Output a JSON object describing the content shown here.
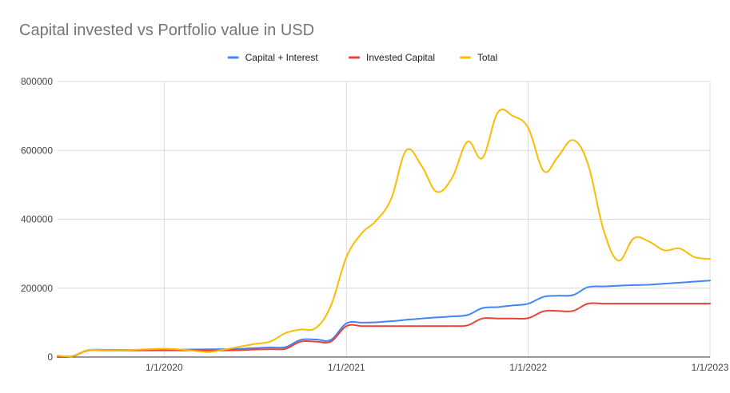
{
  "chart_data": {
    "type": "line",
    "title": "Capital invested vs Portfolio value in USD",
    "xlabel": "",
    "ylabel": "",
    "x_range": [
      "2019-06-01",
      "2023-01-01"
    ],
    "ylim": [
      0,
      800000
    ],
    "y_ticks": [
      "0",
      "200000",
      "400000",
      "600000",
      "800000"
    ],
    "x_ticks": [
      {
        "date": "2020-01-01",
        "label": "1/1/2020"
      },
      {
        "date": "2021-01-01",
        "label": "1/1/2021"
      },
      {
        "date": "2022-01-01",
        "label": "1/1/2022"
      },
      {
        "date": "2023-01-01",
        "label": "1/1/2023"
      }
    ],
    "grid": true,
    "legend_position": "top",
    "series": [
      {
        "name": "Capital + Interest",
        "color": "#4285f4",
        "points": [
          [
            "2019-06-01",
            2000
          ],
          [
            "2019-07-01",
            3000
          ],
          [
            "2019-08-01",
            20000
          ],
          [
            "2019-09-01",
            21000
          ],
          [
            "2019-10-01",
            21000
          ],
          [
            "2019-11-01",
            21000
          ],
          [
            "2019-12-01",
            21000
          ],
          [
            "2020-01-01",
            21000
          ],
          [
            "2020-02-01",
            21500
          ],
          [
            "2020-03-01",
            22000
          ],
          [
            "2020-04-01",
            22500
          ],
          [
            "2020-05-01",
            23000
          ],
          [
            "2020-06-01",
            24000
          ],
          [
            "2020-07-01",
            26000
          ],
          [
            "2020-08-01",
            28000
          ],
          [
            "2020-09-01",
            29000
          ],
          [
            "2020-10-01",
            50000
          ],
          [
            "2020-11-01",
            51000
          ],
          [
            "2020-12-01",
            50000
          ],
          [
            "2021-01-01",
            98000
          ],
          [
            "2021-02-01",
            100000
          ],
          [
            "2021-03-01",
            101000
          ],
          [
            "2021-04-01",
            104000
          ],
          [
            "2021-05-01",
            108000
          ],
          [
            "2021-06-01",
            112000
          ],
          [
            "2021-07-01",
            115000
          ],
          [
            "2021-08-01",
            118000
          ],
          [
            "2021-09-01",
            122000
          ],
          [
            "2021-10-01",
            142000
          ],
          [
            "2021-11-01",
            145000
          ],
          [
            "2021-12-01",
            150000
          ],
          [
            "2022-01-01",
            155000
          ],
          [
            "2022-02-01",
            175000
          ],
          [
            "2022-03-01",
            178000
          ],
          [
            "2022-04-01",
            180000
          ],
          [
            "2022-05-01",
            203000
          ],
          [
            "2022-06-01",
            205000
          ],
          [
            "2022-07-01",
            207000
          ],
          [
            "2022-08-01",
            209000
          ],
          [
            "2022-09-01",
            210000
          ],
          [
            "2022-10-01",
            213000
          ],
          [
            "2022-11-01",
            216000
          ],
          [
            "2022-12-01",
            219000
          ],
          [
            "2023-01-01",
            222000
          ]
        ]
      },
      {
        "name": "Invested Capital",
        "color": "#ea4335",
        "points": [
          [
            "2019-06-01",
            0
          ],
          [
            "2019-07-01",
            2000
          ],
          [
            "2019-08-01",
            19000
          ],
          [
            "2019-09-01",
            19000
          ],
          [
            "2019-10-01",
            19000
          ],
          [
            "2019-11-01",
            19000
          ],
          [
            "2019-12-01",
            19000
          ],
          [
            "2020-01-01",
            19000
          ],
          [
            "2020-02-01",
            19000
          ],
          [
            "2020-03-01",
            19000
          ],
          [
            "2020-04-01",
            19000
          ],
          [
            "2020-05-01",
            19000
          ],
          [
            "2020-06-01",
            20000
          ],
          [
            "2020-07-01",
            22000
          ],
          [
            "2020-08-01",
            23000
          ],
          [
            "2020-09-01",
            24000
          ],
          [
            "2020-10-01",
            45000
          ],
          [
            "2020-11-01",
            45000
          ],
          [
            "2020-12-01",
            45000
          ],
          [
            "2021-01-01",
            90000
          ],
          [
            "2021-02-01",
            90000
          ],
          [
            "2021-03-01",
            90000
          ],
          [
            "2021-04-01",
            90000
          ],
          [
            "2021-05-01",
            90000
          ],
          [
            "2021-06-01",
            90000
          ],
          [
            "2021-07-01",
            90000
          ],
          [
            "2021-08-01",
            90000
          ],
          [
            "2021-09-01",
            92000
          ],
          [
            "2021-10-01",
            112000
          ],
          [
            "2021-11-01",
            112000
          ],
          [
            "2021-12-01",
            112000
          ],
          [
            "2022-01-01",
            113000
          ],
          [
            "2022-02-01",
            133000
          ],
          [
            "2022-03-01",
            134000
          ],
          [
            "2022-04-01",
            134000
          ],
          [
            "2022-05-01",
            155000
          ],
          [
            "2022-06-01",
            155000
          ],
          [
            "2022-07-01",
            155000
          ],
          [
            "2022-08-01",
            155000
          ],
          [
            "2022-09-01",
            155000
          ],
          [
            "2022-10-01",
            155000
          ],
          [
            "2022-11-01",
            155000
          ],
          [
            "2022-12-01",
            155000
          ],
          [
            "2023-01-01",
            155000
          ]
        ]
      },
      {
        "name": "Total",
        "color": "#fbbc04",
        "points": [
          [
            "2019-06-01",
            4000
          ],
          [
            "2019-07-01",
            3000
          ],
          [
            "2019-08-01",
            20000
          ],
          [
            "2019-09-01",
            20000
          ],
          [
            "2019-10-01",
            20000
          ],
          [
            "2019-11-01",
            21000
          ],
          [
            "2019-12-01",
            23000
          ],
          [
            "2020-01-01",
            24000
          ],
          [
            "2020-02-01",
            22000
          ],
          [
            "2020-03-01",
            18000
          ],
          [
            "2020-04-01",
            15000
          ],
          [
            "2020-05-01",
            22000
          ],
          [
            "2020-06-01",
            30000
          ],
          [
            "2020-07-01",
            38000
          ],
          [
            "2020-08-01",
            45000
          ],
          [
            "2020-09-01",
            70000
          ],
          [
            "2020-10-01",
            80000
          ],
          [
            "2020-11-01",
            85000
          ],
          [
            "2020-12-01",
            150000
          ],
          [
            "2021-01-01",
            290000
          ],
          [
            "2021-02-01",
            360000
          ],
          [
            "2021-03-01",
            395000
          ],
          [
            "2021-04-01",
            460000
          ],
          [
            "2021-05-01",
            600000
          ],
          [
            "2021-06-01",
            555000
          ],
          [
            "2021-07-01",
            480000
          ],
          [
            "2021-08-01",
            520000
          ],
          [
            "2021-09-01",
            625000
          ],
          [
            "2021-10-01",
            578000
          ],
          [
            "2021-11-01",
            710000
          ],
          [
            "2021-12-01",
            700000
          ],
          [
            "2022-01-01",
            665000
          ],
          [
            "2022-02-01",
            540000
          ],
          [
            "2022-03-01",
            580000
          ],
          [
            "2022-04-01",
            630000
          ],
          [
            "2022-05-01",
            560000
          ],
          [
            "2022-06-01",
            370000
          ],
          [
            "2022-07-01",
            280000
          ],
          [
            "2022-08-01",
            345000
          ],
          [
            "2022-09-01",
            335000
          ],
          [
            "2022-10-01",
            310000
          ],
          [
            "2022-11-01",
            315000
          ],
          [
            "2022-12-01",
            290000
          ],
          [
            "2023-01-01",
            285000
          ]
        ]
      }
    ]
  }
}
